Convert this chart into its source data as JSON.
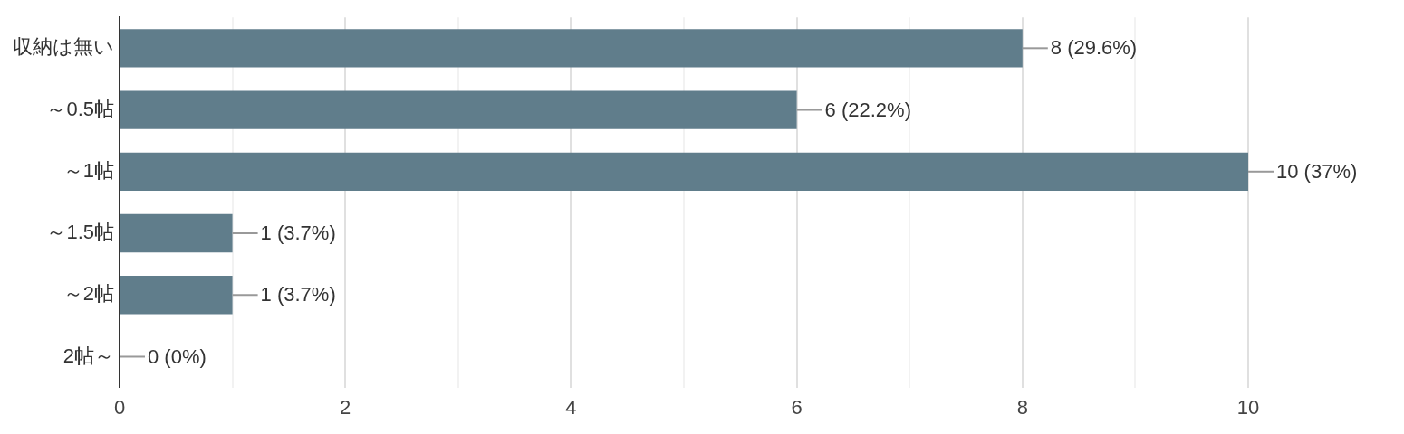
{
  "chart_data": {
    "type": "bar",
    "orientation": "horizontal",
    "categories": [
      "収納は無い",
      "～0.5帖",
      "～1帖",
      "～1.5帖",
      "～2帖",
      "2帖～"
    ],
    "values": [
      8,
      6,
      10,
      1,
      1,
      0
    ],
    "value_labels": [
      "8 (29.6%)",
      "6 (22.2%)",
      "10 (37%)",
      "1 (3.7%)",
      "1 (3.7%)",
      "0 (0%)"
    ],
    "color": "#607d8b",
    "xlim": [
      0,
      10
    ],
    "xticks": [
      0,
      {
        "value": 1,
        "label": null
      },
      2,
      {
        "value": 3,
        "label": null
      },
      4,
      {
        "value": 5,
        "label": null
      },
      6,
      {
        "value": 7,
        "label": null
      },
      8,
      {
        "value": 9,
        "label": null
      },
      10
    ],
    "grid": "x",
    "legend": false
  }
}
